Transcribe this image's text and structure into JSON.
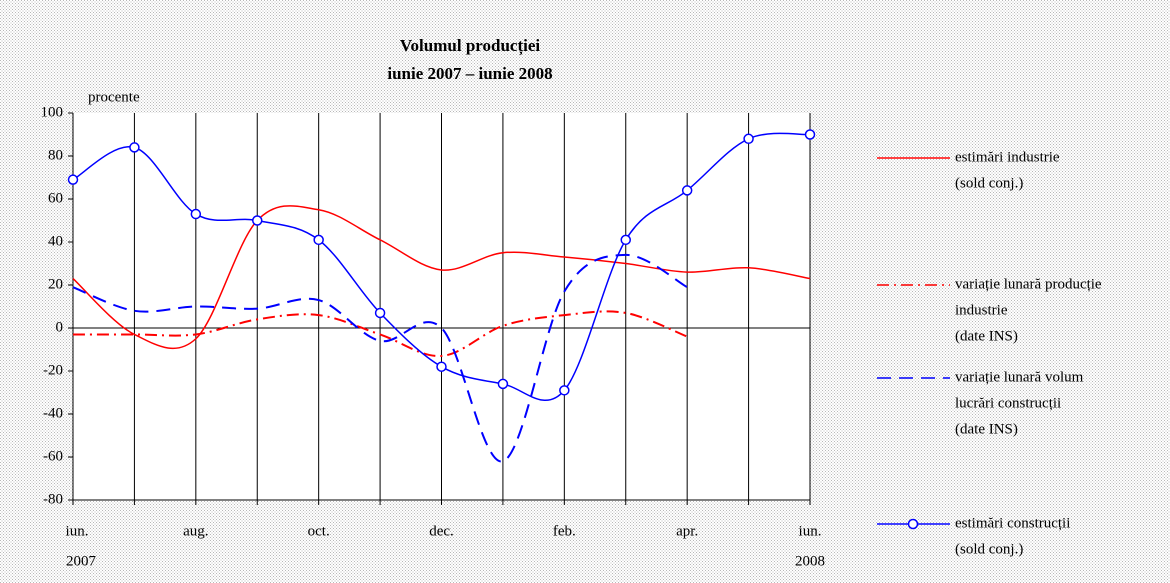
{
  "chart_data": {
    "type": "line",
    "title": "Volumul producției",
    "subtitle": "iunie 2007 – iunie 2008",
    "y_label": "procente",
    "categories": [
      "iun.",
      null,
      "aug.",
      null,
      "oct.",
      null,
      "dec.",
      null,
      "feb.",
      null,
      "apr.",
      null,
      "iun."
    ],
    "category_sublabels": [
      "2007",
      null,
      null,
      null,
      null,
      null,
      null,
      null,
      null,
      null,
      null,
      null,
      "2008"
    ],
    "ylim": [
      -80,
      100
    ],
    "yticks": [
      -80,
      -60,
      -40,
      -20,
      0,
      20,
      40,
      60,
      80,
      100
    ],
    "grid": "vertical",
    "legend": "right",
    "series": [
      {
        "name": [
          "estimări industrie",
          "(sold conj.)"
        ],
        "color": "#ff0000",
        "style": "solid",
        "marker": null,
        "values": [
          23,
          -3,
          -5,
          50,
          55,
          41,
          27,
          35,
          33,
          30,
          26,
          28,
          23
        ]
      },
      {
        "name": [
          "variație lunară producție",
          "industrie",
          "(date INS)"
        ],
        "color": "#ff0000",
        "style": "dashdot",
        "marker": null,
        "values": [
          -3,
          -3,
          -3,
          4,
          6,
          -3,
          -13,
          1,
          6,
          7,
          -4,
          null,
          null
        ]
      },
      {
        "name": [
          "variație lunară volum",
          "lucrări construcții",
          "(date INS)"
        ],
        "color": "#0000ff",
        "style": "dashed",
        "marker": null,
        "values": [
          19,
          8,
          10,
          9,
          13,
          -6,
          0,
          -62,
          17,
          34,
          19,
          null,
          null
        ]
      },
      {
        "name": [
          "estimări construcții",
          "(sold conj.)"
        ],
        "color": "#0000ff",
        "style": "solid",
        "marker": "circle",
        "values": [
          69,
          84,
          53,
          50,
          41,
          7,
          -18,
          -26,
          -29,
          41,
          64,
          88,
          90
        ]
      }
    ]
  }
}
